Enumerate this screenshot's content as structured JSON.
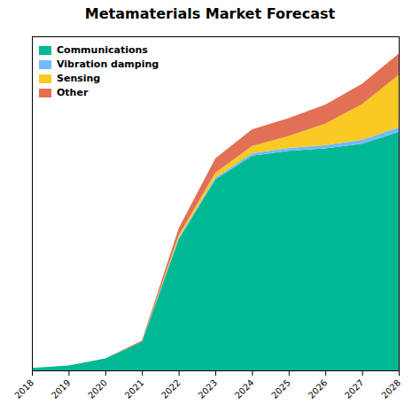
{
  "chart_data": {
    "type": "area",
    "title": "Metamaterials Market Forecast",
    "x": [
      2018,
      2019,
      2020,
      2021,
      2022,
      2023,
      2024,
      2025,
      2026,
      2027,
      2028
    ],
    "series": [
      {
        "name": "Communications",
        "color": "#00b894",
        "values": [
          0.01,
          0.02,
          0.05,
          0.12,
          0.55,
          0.8,
          0.9,
          0.92,
          0.93,
          0.95,
          1.0
        ]
      },
      {
        "name": "Vibration damping",
        "color": "#74b9ff",
        "values": [
          0.0,
          0.0,
          0.0,
          0.0,
          0.005,
          0.008,
          0.01,
          0.012,
          0.014,
          0.016,
          0.018
        ]
      },
      {
        "name": "Sensing",
        "color": "#f9ca24",
        "values": [
          0.0,
          0.0,
          0.0,
          0.0,
          0.01,
          0.02,
          0.03,
          0.05,
          0.09,
          0.15,
          0.22
        ]
      },
      {
        "name": "Other",
        "color": "#e17055",
        "values": [
          0.0,
          0.0,
          0.0,
          0.005,
          0.03,
          0.06,
          0.07,
          0.075,
          0.08,
          0.085,
          0.09
        ]
      }
    ],
    "stacked": true,
    "xlim": [
      2018,
      2028
    ],
    "ylim": [
      0,
      1.4
    ],
    "xticks": [
      2018,
      2019,
      2020,
      2021,
      2022,
      2023,
      2024,
      2025,
      2026,
      2027,
      2028
    ],
    "yticks": [],
    "tick_labels": "x",
    "legend": "upper left",
    "grid": false
  }
}
